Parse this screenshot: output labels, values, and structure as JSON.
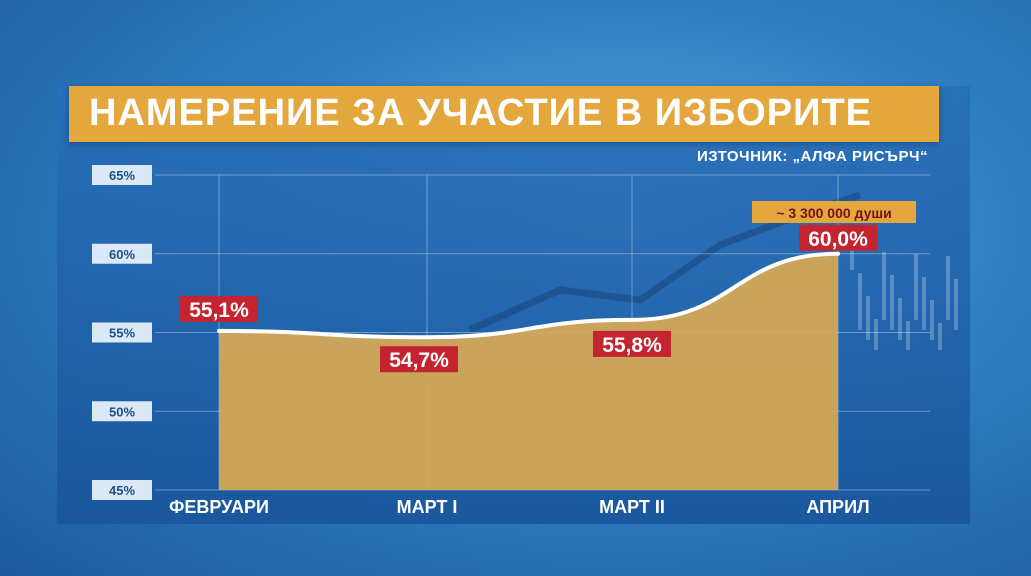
{
  "title": "НАМЕРЕНИЕ ЗА УЧАСТИЕ В ИЗБОРИТЕ",
  "source": "ИЗТОЧНИК: „АЛФА РИСЪРЧ“",
  "colors": {
    "area": "#d9a955",
    "line": "#ffffff",
    "label_bg": "#c4242f",
    "title_bg": "#e3a73e",
    "note_bg": "#e3a73e"
  },
  "chart_data": {
    "type": "area",
    "categories": [
      "ФЕВРУАРИ",
      "МАРТ I",
      "МАРТ II",
      "АПРИЛ"
    ],
    "values": [
      55.1,
      54.7,
      55.8,
      60.0
    ],
    "data_labels": [
      "55,1%",
      "54,7%",
      "55,8%",
      "60,0%"
    ],
    "ylim": [
      45,
      65
    ],
    "yticks": [
      65,
      60,
      55,
      50,
      45
    ],
    "ytick_labels": [
      "65%",
      "60%",
      "55%",
      "50%",
      "45%"
    ],
    "annotation": "~ 3 300 000 души",
    "grid": true
  }
}
